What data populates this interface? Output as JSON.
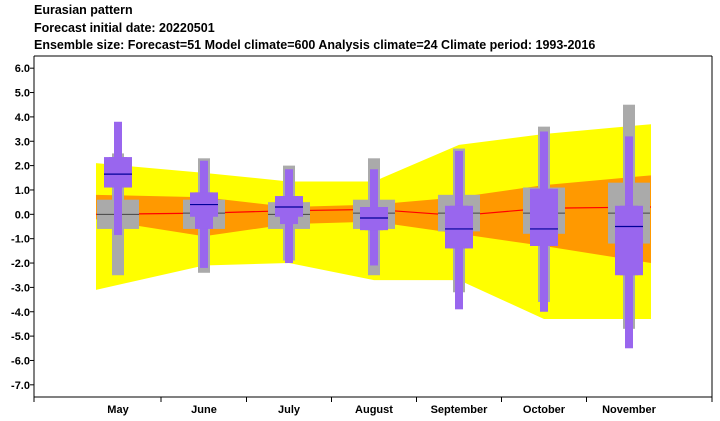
{
  "header": {
    "title": "Eurasian pattern",
    "line2": " Forecast initial date: 20220501",
    "line3": "Ensemble size: Forecast=51 Model climate=600 Analysis climate=24   Climate period: 1993-2016"
  },
  "chart_data": {
    "type": "box",
    "categories": [
      "May",
      "June",
      "July",
      "August",
      "September",
      "October",
      "November"
    ],
    "ylim": [
      -7.5,
      6.5
    ],
    "yticks": [
      "6.0",
      "5.0",
      "4.0",
      "3.0",
      "2.0",
      "1.0",
      "0.0",
      "-1.0",
      "-2.0",
      "-3.0",
      "-4.0",
      "-5.0",
      "-6.0",
      "-7.0"
    ],
    "colors": {
      "outer_band": "#ffff00",
      "inner_band": "#ff9900",
      "median_line": "#ff0000",
      "model_climate_box": "#aaaaaa",
      "forecast_box": "#9966ee",
      "median_tick": "#000099"
    },
    "analysis_climate_band": {
      "p10": [
        -3.1,
        -2.1,
        -2.0,
        -2.7,
        -2.7,
        -4.3,
        -4.3
      ],
      "p25": [
        -0.2,
        -0.9,
        -0.4,
        -0.3,
        -0.8,
        -1.3,
        -2.0
      ],
      "median": [
        0.0,
        0.05,
        0.15,
        0.2,
        -0.05,
        0.25,
        0.3
      ],
      "p75": [
        0.8,
        0.7,
        0.3,
        0.4,
        0.7,
        1.2,
        1.6
      ],
      "p90": [
        2.1,
        1.7,
        1.35,
        1.35,
        2.85,
        3.3,
        3.7
      ]
    },
    "model_climate": [
      {
        "min": -2.5,
        "q1": -0.6,
        "median": 0.0,
        "q3": 0.6,
        "max": 2.5
      },
      {
        "min": -2.4,
        "q1": -0.6,
        "median": 0.05,
        "q3": 0.6,
        "max": 2.3
      },
      {
        "min": -1.9,
        "q1": -0.6,
        "median": 0.0,
        "q3": 0.5,
        "max": 2.0
      },
      {
        "min": -2.5,
        "q1": -0.6,
        "median": 0.05,
        "q3": 0.6,
        "max": 2.3
      },
      {
        "min": -3.2,
        "q1": -0.7,
        "median": 0.05,
        "q3": 0.8,
        "max": 2.7
      },
      {
        "min": -3.6,
        "q1": -0.8,
        "median": 0.05,
        "q3": 1.1,
        "max": 3.6
      },
      {
        "min": -4.7,
        "q1": -1.2,
        "median": 0.05,
        "q3": 1.3,
        "max": 4.5
      }
    ],
    "forecast": [
      {
        "min": -0.85,
        "p10": 1.1,
        "q1": 1.1,
        "median": 1.65,
        "q3": 2.35,
        "p90": 2.35,
        "max": 3.8
      },
      {
        "min": -2.2,
        "p10": -0.6,
        "q1": -0.1,
        "median": 0.4,
        "q3": 0.9,
        "p90": 0.9,
        "max": 2.2
      },
      {
        "min": -2.0,
        "p10": -0.4,
        "q1": -0.1,
        "median": 0.3,
        "q3": 0.75,
        "p90": 0.75,
        "max": 1.85
      },
      {
        "min": -2.1,
        "p10": -0.65,
        "q1": -0.65,
        "median": -0.15,
        "q3": 0.3,
        "p90": 0.3,
        "max": 1.85
      },
      {
        "min": -3.9,
        "p10": -1.4,
        "q1": -1.4,
        "median": -0.6,
        "q3": 0.35,
        "p90": 0.35,
        "max": 2.6
      },
      {
        "min": -4.0,
        "p10": -1.3,
        "q1": -1.3,
        "median": -0.6,
        "q3": 1.05,
        "p90": 1.05,
        "max": 3.4
      },
      {
        "min": -5.5,
        "p10": -2.5,
        "q1": -2.5,
        "median": -0.5,
        "q3": 0.35,
        "p90": 0.35,
        "max": 3.2
      }
    ]
  }
}
